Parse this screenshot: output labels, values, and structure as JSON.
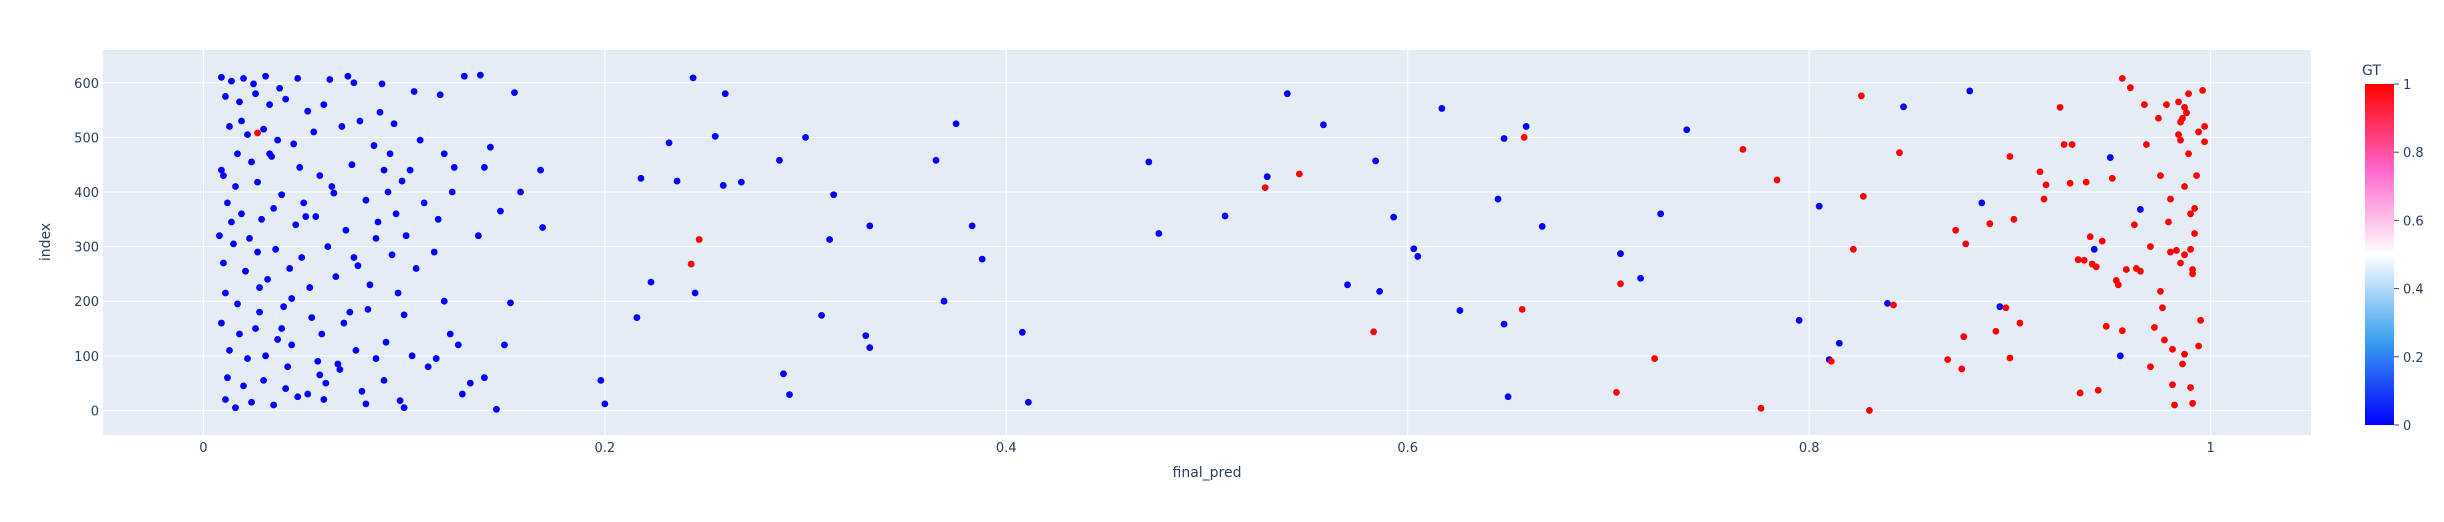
{
  "chart_data": {
    "type": "scatter",
    "xlabel": "final_pred",
    "ylabel": "index",
    "xlim": [
      -0.05,
      1.05
    ],
    "ylim": [
      -45,
      660
    ],
    "xticks": [
      0,
      0.2,
      0.4,
      0.6,
      0.8,
      1
    ],
    "xtick_labels": [
      "0",
      "0.2",
      "0.4",
      "0.6",
      "0.8",
      "1"
    ],
    "yticks": [
      0,
      100,
      200,
      300,
      400,
      500,
      600
    ],
    "ytick_labels": [
      "0",
      "100",
      "200",
      "300",
      "400",
      "500",
      "600"
    ],
    "colorbar": {
      "title": "GT",
      "range": [
        0,
        1
      ],
      "ticks": [
        0,
        0.2,
        0.4,
        0.6,
        0.8,
        1
      ],
      "tick_labels": [
        "0",
        "0.2",
        "0.4",
        "0.6",
        "0.8",
        "1"
      ],
      "colorscale": [
        "#0000ff",
        "#3ca0f0",
        "#ffffff",
        "#ff66cc",
        "#ff0000"
      ]
    },
    "plot_background": "#e5ecf6",
    "grid": true,
    "points": [
      [
        0.009,
        610,
        0
      ],
      [
        0.014,
        603,
        0
      ],
      [
        0.02,
        608,
        0
      ],
      [
        0.025,
        598,
        0
      ],
      [
        0.031,
        612,
        0
      ],
      [
        0.038,
        590,
        0
      ],
      [
        0.047,
        608,
        0
      ],
      [
        0.063,
        606,
        0
      ],
      [
        0.072,
        612,
        0
      ],
      [
        0.075,
        600,
        0
      ],
      [
        0.089,
        598,
        0
      ],
      [
        0.105,
        584,
        0
      ],
      [
        0.13,
        612,
        0
      ],
      [
        0.138,
        614,
        0
      ],
      [
        0.155,
        582,
        0
      ],
      [
        0.244,
        609,
        0
      ],
      [
        0.011,
        575,
        0
      ],
      [
        0.018,
        565,
        0
      ],
      [
        0.026,
        580,
        0
      ],
      [
        0.033,
        560,
        0
      ],
      [
        0.041,
        570,
        0
      ],
      [
        0.052,
        548,
        0
      ],
      [
        0.06,
        560,
        0
      ],
      [
        0.078,
        530,
        0
      ],
      [
        0.088,
        546,
        0
      ],
      [
        0.095,
        525,
        0
      ],
      [
        0.118,
        578,
        0
      ],
      [
        0.26,
        580,
        0
      ],
      [
        0.013,
        520,
        0
      ],
      [
        0.022,
        505,
        0
      ],
      [
        0.03,
        515,
        0
      ],
      [
        0.037,
        495,
        0
      ],
      [
        0.045,
        488,
        0
      ],
      [
        0.055,
        510,
        0
      ],
      [
        0.069,
        520,
        0
      ],
      [
        0.085,
        485,
        0
      ],
      [
        0.093,
        470,
        0
      ],
      [
        0.108,
        495,
        0
      ],
      [
        0.12,
        470,
        0
      ],
      [
        0.143,
        482,
        0
      ],
      [
        0.255,
        502,
        0
      ],
      [
        0.3,
        500,
        0
      ],
      [
        0.375,
        525,
        0
      ],
      [
        0.017,
        470,
        0
      ],
      [
        0.024,
        455,
        0
      ],
      [
        0.034,
        465,
        0
      ],
      [
        0.048,
        445,
        0
      ],
      [
        0.058,
        430,
        0
      ],
      [
        0.074,
        450,
        0
      ],
      [
        0.09,
        440,
        0
      ],
      [
        0.099,
        420,
        0
      ],
      [
        0.125,
        445,
        0
      ],
      [
        0.14,
        445,
        0
      ],
      [
        0.168,
        440,
        0
      ],
      [
        0.218,
        425,
        0
      ],
      [
        0.232,
        490,
        0
      ],
      [
        0.287,
        458,
        0
      ],
      [
        0.365,
        458,
        0
      ],
      [
        0.01,
        430,
        0
      ],
      [
        0.016,
        410,
        0
      ],
      [
        0.027,
        418,
        0
      ],
      [
        0.039,
        395,
        0
      ],
      [
        0.05,
        380,
        0
      ],
      [
        0.065,
        398,
        0
      ],
      [
        0.081,
        385,
        0
      ],
      [
        0.096,
        360,
        0
      ],
      [
        0.11,
        380,
        0
      ],
      [
        0.124,
        400,
        0
      ],
      [
        0.148,
        365,
        0
      ],
      [
        0.158,
        400,
        0
      ],
      [
        0.236,
        420,
        0
      ],
      [
        0.259,
        412,
        0
      ],
      [
        0.268,
        418,
        0
      ],
      [
        0.314,
        395,
        0
      ],
      [
        0.012,
        380,
        0
      ],
      [
        0.019,
        360,
        0
      ],
      [
        0.029,
        350,
        0
      ],
      [
        0.035,
        370,
        0
      ],
      [
        0.046,
        340,
        0
      ],
      [
        0.056,
        355,
        0
      ],
      [
        0.071,
        330,
        0
      ],
      [
        0.087,
        345,
        0
      ],
      [
        0.101,
        320,
        0
      ],
      [
        0.137,
        320,
        0
      ],
      [
        0.169,
        335,
        0
      ],
      [
        0.332,
        338,
        0
      ],
      [
        0.383,
        338,
        0
      ],
      [
        0.008,
        320,
        0
      ],
      [
        0.015,
        305,
        0
      ],
      [
        0.023,
        315,
        0
      ],
      [
        0.036,
        295,
        0
      ],
      [
        0.049,
        280,
        0
      ],
      [
        0.062,
        300,
        0
      ],
      [
        0.077,
        265,
        0
      ],
      [
        0.094,
        285,
        0
      ],
      [
        0.115,
        290,
        0
      ],
      [
        0.312,
        313,
        0
      ],
      [
        0.388,
        277,
        0
      ],
      [
        0.01,
        270,
        0
      ],
      [
        0.021,
        255,
        0
      ],
      [
        0.032,
        240,
        0
      ],
      [
        0.043,
        260,
        0
      ],
      [
        0.053,
        225,
        0
      ],
      [
        0.066,
        245,
        0
      ],
      [
        0.083,
        230,
        0
      ],
      [
        0.097,
        215,
        0
      ],
      [
        0.12,
        200,
        0
      ],
      [
        0.153,
        197,
        0
      ],
      [
        0.223,
        235,
        0
      ],
      [
        0.245,
        215,
        0
      ],
      [
        0.369,
        200,
        0
      ],
      [
        0.011,
        215,
        0
      ],
      [
        0.017,
        195,
        0
      ],
      [
        0.028,
        180,
        0
      ],
      [
        0.04,
        190,
        0
      ],
      [
        0.054,
        170,
        0
      ],
      [
        0.07,
        160,
        0
      ],
      [
        0.082,
        185,
        0
      ],
      [
        0.1,
        175,
        0
      ],
      [
        0.216,
        170,
        0
      ],
      [
        0.308,
        174,
        0
      ],
      [
        0.009,
        160,
        0
      ],
      [
        0.018,
        140,
        0
      ],
      [
        0.026,
        150,
        0
      ],
      [
        0.037,
        130,
        0
      ],
      [
        0.044,
        120,
        0
      ],
      [
        0.059,
        140,
        0
      ],
      [
        0.076,
        110,
        0
      ],
      [
        0.091,
        125,
        0
      ],
      [
        0.123,
        140,
        0
      ],
      [
        0.15,
        120,
        0
      ],
      [
        0.33,
        137,
        0
      ],
      [
        0.332,
        115,
        0
      ],
      [
        0.408,
        143,
        0
      ],
      [
        0.013,
        110,
        0
      ],
      [
        0.022,
        95,
        0
      ],
      [
        0.031,
        100,
        0
      ],
      [
        0.042,
        80,
        0
      ],
      [
        0.057,
        90,
        0
      ],
      [
        0.068,
        75,
        0
      ],
      [
        0.086,
        95,
        0
      ],
      [
        0.104,
        100,
        0
      ],
      [
        0.112,
        80,
        0
      ],
      [
        0.127,
        120,
        0
      ],
      [
        0.012,
        60,
        0
      ],
      [
        0.02,
        45,
        0
      ],
      [
        0.03,
        55,
        0
      ],
      [
        0.041,
        40,
        0
      ],
      [
        0.052,
        30,
        0
      ],
      [
        0.061,
        50,
        0
      ],
      [
        0.079,
        35,
        0
      ],
      [
        0.09,
        55,
        0
      ],
      [
        0.129,
        30,
        0
      ],
      [
        0.133,
        50,
        0
      ],
      [
        0.14,
        60,
        0
      ],
      [
        0.198,
        55,
        0
      ],
      [
        0.289,
        67,
        0
      ],
      [
        0.011,
        20,
        0
      ],
      [
        0.016,
        5,
        0
      ],
      [
        0.024,
        15,
        0
      ],
      [
        0.035,
        10,
        0
      ],
      [
        0.047,
        25,
        0
      ],
      [
        0.06,
        20,
        0
      ],
      [
        0.081,
        12,
        0
      ],
      [
        0.098,
        18,
        0
      ],
      [
        0.1,
        5,
        0
      ],
      [
        0.146,
        2,
        0
      ],
      [
        0.2,
        12,
        0
      ],
      [
        0.292,
        29,
        0
      ],
      [
        0.411,
        15,
        0
      ],
      [
        0.471,
        455,
        0
      ],
      [
        0.476,
        324,
        0
      ],
      [
        0.509,
        356,
        0
      ],
      [
        0.53,
        428,
        0
      ],
      [
        0.54,
        580,
        0
      ],
      [
        0.558,
        523,
        0
      ],
      [
        0.57,
        230,
        0
      ],
      [
        0.584,
        457,
        0
      ],
      [
        0.586,
        218,
        0
      ],
      [
        0.593,
        354,
        0
      ],
      [
        0.603,
        296,
        0
      ],
      [
        0.605,
        282,
        0
      ],
      [
        0.617,
        553,
        0
      ],
      [
        0.626,
        183,
        0
      ],
      [
        0.645,
        387,
        0
      ],
      [
        0.648,
        498,
        0
      ],
      [
        0.648,
        158,
        0
      ],
      [
        0.65,
        25,
        0
      ],
      [
        0.659,
        520,
        0
      ],
      [
        0.667,
        337,
        0
      ],
      [
        0.706,
        287,
        0
      ],
      [
        0.716,
        242,
        0
      ],
      [
        0.726,
        360,
        0
      ],
      [
        0.739,
        514,
        0
      ],
      [
        0.795,
        165,
        0
      ],
      [
        0.805,
        374,
        0
      ],
      [
        0.81,
        93,
        0
      ],
      [
        0.815,
        123,
        0
      ],
      [
        0.839,
        196,
        0
      ],
      [
        0.847,
        556,
        0
      ],
      [
        0.88,
        585,
        0
      ],
      [
        0.886,
        380,
        0
      ],
      [
        0.895,
        190,
        0
      ],
      [
        0.942,
        295,
        0
      ],
      [
        0.95,
        463,
        0
      ],
      [
        0.955,
        100,
        0
      ],
      [
        0.965,
        368,
        0
      ],
      [
        0.009,
        440,
        0
      ],
      [
        0.014,
        345,
        0
      ],
      [
        0.027,
        290,
        0
      ],
      [
        0.044,
        205,
        0
      ],
      [
        0.064,
        410,
        0
      ],
      [
        0.073,
        180,
        0
      ],
      [
        0.086,
        315,
        0
      ],
      [
        0.106,
        260,
        0
      ],
      [
        0.019,
        530,
        0
      ],
      [
        0.033,
        470,
        0
      ],
      [
        0.051,
        355,
        0
      ],
      [
        0.067,
        85,
        0
      ],
      [
        0.092,
        400,
        0
      ],
      [
        0.117,
        350,
        0
      ],
      [
        0.028,
        225,
        0
      ],
      [
        0.039,
        150,
        0
      ],
      [
        0.058,
        65,
        0
      ],
      [
        0.075,
        280,
        0
      ],
      [
        0.103,
        440,
        0
      ],
      [
        0.116,
        95,
        0
      ],
      [
        0.027,
        508,
        1
      ],
      [
        0.247,
        313,
        1
      ],
      [
        0.243,
        268,
        1
      ],
      [
        0.529,
        408,
        1
      ],
      [
        0.546,
        433,
        1
      ],
      [
        0.583,
        144,
        1
      ],
      [
        0.658,
        500,
        1
      ],
      [
        0.657,
        185,
        1
      ],
      [
        0.704,
        33,
        1
      ],
      [
        0.706,
        232,
        1
      ],
      [
        0.723,
        95,
        1
      ],
      [
        0.767,
        478,
        1
      ],
      [
        0.776,
        4,
        1
      ],
      [
        0.784,
        422,
        1
      ],
      [
        0.811,
        90,
        1
      ],
      [
        0.822,
        295,
        1
      ],
      [
        0.826,
        576,
        1
      ],
      [
        0.827,
        392,
        1
      ],
      [
        0.83,
        0,
        1
      ],
      [
        0.842,
        193,
        1
      ],
      [
        0.845,
        472,
        1
      ],
      [
        0.869,
        93,
        1
      ],
      [
        0.873,
        330,
        1
      ],
      [
        0.876,
        76,
        1
      ],
      [
        0.877,
        135,
        1
      ],
      [
        0.878,
        305,
        1
      ],
      [
        0.89,
        342,
        1
      ],
      [
        0.893,
        145,
        1
      ],
      [
        0.898,
        188,
        1
      ],
      [
        0.9,
        465,
        1
      ],
      [
        0.9,
        96,
        1
      ],
      [
        0.902,
        350,
        1
      ],
      [
        0.905,
        160,
        1
      ],
      [
        0.915,
        437,
        1
      ],
      [
        0.917,
        387,
        1
      ],
      [
        0.918,
        413,
        1
      ],
      [
        0.925,
        555,
        1
      ],
      [
        0.927,
        487,
        1
      ],
      [
        0.93,
        416,
        1
      ],
      [
        0.931,
        487,
        1
      ],
      [
        0.934,
        276,
        1
      ],
      [
        0.935,
        32,
        1
      ],
      [
        0.937,
        275,
        1
      ],
      [
        0.938,
        418,
        1
      ],
      [
        0.94,
        318,
        1
      ],
      [
        0.941,
        268,
        1
      ],
      [
        0.943,
        263,
        1
      ],
      [
        0.944,
        37,
        1
      ],
      [
        0.946,
        310,
        1
      ],
      [
        0.948,
        154,
        1
      ],
      [
        0.951,
        425,
        1
      ],
      [
        0.953,
        238,
        1
      ],
      [
        0.954,
        230,
        1
      ],
      [
        0.956,
        608,
        1
      ],
      [
        0.956,
        146,
        1
      ],
      [
        0.958,
        258,
        1
      ],
      [
        0.96,
        591,
        1
      ],
      [
        0.962,
        340,
        1
      ],
      [
        0.963,
        260,
        1
      ],
      [
        0.965,
        255,
        1
      ],
      [
        0.967,
        560,
        1
      ],
      [
        0.968,
        487,
        1
      ],
      [
        0.97,
        300,
        1
      ],
      [
        0.97,
        80,
        1
      ],
      [
        0.972,
        152,
        1
      ],
      [
        0.974,
        535,
        1
      ],
      [
        0.975,
        218,
        1
      ],
      [
        0.975,
        430,
        1
      ],
      [
        0.976,
        188,
        1
      ],
      [
        0.977,
        129,
        1
      ],
      [
        0.978,
        560,
        1
      ],
      [
        0.979,
        345,
        1
      ],
      [
        0.98,
        387,
        1
      ],
      [
        0.98,
        290,
        1
      ],
      [
        0.981,
        47,
        1
      ],
      [
        0.981,
        112,
        1
      ],
      [
        0.982,
        10,
        1
      ],
      [
        0.983,
        293,
        1
      ],
      [
        0.984,
        565,
        1
      ],
      [
        0.984,
        505,
        1
      ],
      [
        0.985,
        528,
        1
      ],
      [
        0.985,
        495,
        1
      ],
      [
        0.985,
        270,
        1
      ],
      [
        0.986,
        85,
        1
      ],
      [
        0.986,
        535,
        1
      ],
      [
        0.987,
        555,
        1
      ],
      [
        0.987,
        410,
        1
      ],
      [
        0.987,
        103,
        1
      ],
      [
        0.987,
        285,
        1
      ],
      [
        0.988,
        545,
        1
      ],
      [
        0.989,
        580,
        1
      ],
      [
        0.989,
        470,
        1
      ],
      [
        0.99,
        360,
        1
      ],
      [
        0.99,
        295,
        1
      ],
      [
        0.99,
        42,
        1
      ],
      [
        0.991,
        250,
        1
      ],
      [
        0.991,
        258,
        1
      ],
      [
        0.991,
        13,
        1
      ],
      [
        0.992,
        370,
        1
      ],
      [
        0.992,
        324,
        1
      ],
      [
        0.993,
        430,
        1
      ],
      [
        0.994,
        510,
        1
      ],
      [
        0.994,
        118,
        1
      ],
      [
        0.995,
        165,
        1
      ],
      [
        0.996,
        586,
        1
      ],
      [
        0.997,
        492,
        1
      ],
      [
        0.997,
        520,
        1
      ]
    ]
  }
}
